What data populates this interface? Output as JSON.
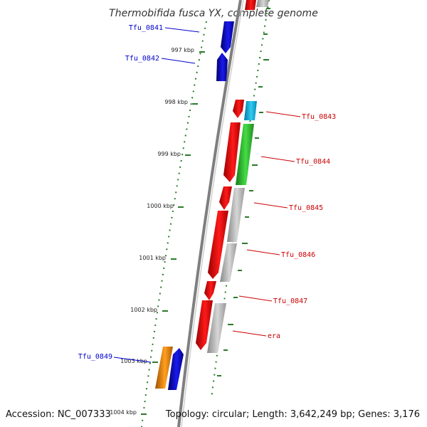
{
  "title": "Thermobifida fusca YX, complete genome",
  "footer": {
    "accession": "Accession: NC_007333",
    "topology": "Topology: circular; Length: 3,642,249 bp; Genes: 3,176"
  },
  "colors": {
    "forward_strand": "#1a1acc",
    "reverse_strand": "#cc0000",
    "tick_green": "#2a7a2a",
    "backbone": "#7f7f7f"
  },
  "kbp_ticks": [
    "997 kbp",
    "998 kbp",
    "999 kbp",
    "1000 kbp",
    "1001 kbp",
    "1002 kbp",
    "1003 kbp",
    "1004 kbp"
  ],
  "gene_labels": {
    "forward": [
      "Tfu_0841",
      "Tfu_0842",
      "Tfu_0849"
    ],
    "reverse": [
      "Tfu_0843",
      "Tfu_0844",
      "Tfu_0845",
      "Tfu_0846",
      "Tfu_0847",
      "era"
    ]
  },
  "annotation_colors": {
    "cog_info": "#ff8c00",
    "cog_metabolism": "#33cc33",
    "cog_cellular": "#22bbdd",
    "cog_unknown": "#b0b0b0"
  }
}
